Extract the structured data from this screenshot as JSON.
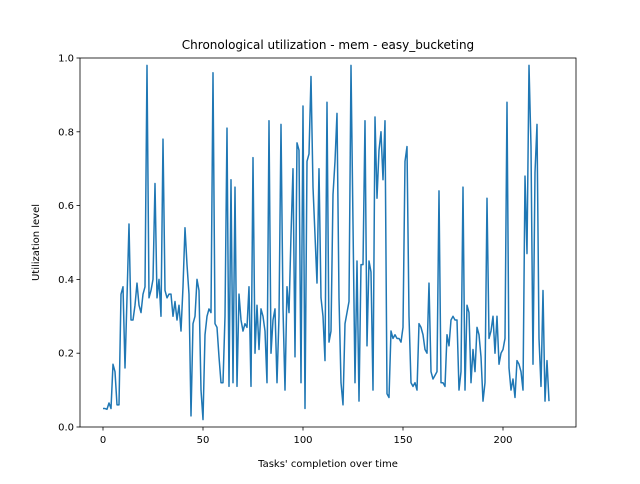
{
  "chart_data": {
    "type": "line",
    "title": "Chronological utilization - mem - easy_bucketing",
    "xlabel": "Tasks' completion over time",
    "ylabel": "Utilization level",
    "color": "#1f77b4",
    "xlim": [
      -11.5,
      236.5
    ],
    "xticks": [
      0,
      50,
      100,
      150,
      200
    ],
    "ylim": [
      0,
      1
    ],
    "yticks": [
      {
        "value": 0,
        "label": "0.0"
      },
      0.2,
      0.4,
      0.6,
      0.8,
      {
        "value": 1,
        "label": "1.0"
      }
    ],
    "values": [
      0.05,
      0.05,
      0.048,
      0.065,
      0.05,
      0.17,
      0.15,
      0.06,
      0.06,
      0.36,
      0.38,
      0.16,
      0.35,
      0.55,
      0.29,
      0.29,
      0.33,
      0.39,
      0.33,
      0.31,
      0.36,
      0.38,
      0.98,
      0.35,
      0.37,
      0.4,
      0.66,
      0.35,
      0.4,
      0.3,
      0.78,
      0.37,
      0.35,
      0.36,
      0.36,
      0.3,
      0.34,
      0.29,
      0.33,
      0.26,
      0.38,
      0.54,
      0.44,
      0.36,
      0.03,
      0.28,
      0.3,
      0.4,
      0.37,
      0.1,
      0.02,
      0.25,
      0.3,
      0.32,
      0.31,
      0.96,
      0.28,
      0.27,
      0.19,
      0.12,
      0.12,
      0.3,
      0.81,
      0.11,
      0.67,
      0.12,
      0.65,
      0.11,
      0.36,
      0.29,
      0.26,
      0.28,
      0.27,
      0.38,
      0.11,
      0.73,
      0.2,
      0.33,
      0.21,
      0.32,
      0.3,
      0.26,
      0.12,
      0.83,
      0.2,
      0.29,
      0.32,
      0.12,
      0.3,
      0.82,
      0.32,
      0.1,
      0.38,
      0.31,
      0.52,
      0.7,
      0.19,
      0.77,
      0.75,
      0.12,
      0.87,
      0.05,
      0.72,
      0.74,
      0.95,
      0.65,
      0.52,
      0.39,
      0.7,
      0.35,
      0.3,
      0.18,
      0.88,
      0.23,
      0.26,
      0.63,
      0.72,
      0.85,
      0.35,
      0.12,
      0.06,
      0.28,
      0.31,
      0.34,
      0.98,
      0.55,
      0.12,
      0.45,
      0.07,
      0.44,
      0.44,
      0.83,
      0.22,
      0.45,
      0.42,
      0.1,
      0.84,
      0.62,
      0.75,
      0.8,
      0.67,
      0.83,
      0.09,
      0.08,
      0.26,
      0.24,
      0.25,
      0.24,
      0.24,
      0.23,
      0.27,
      0.72,
      0.76,
      0.3,
      0.12,
      0.11,
      0.12,
      0.1,
      0.28,
      0.27,
      0.25,
      0.21,
      0.2,
      0.39,
      0.15,
      0.13,
      0.14,
      0.15,
      0.64,
      0.12,
      0.12,
      0.11,
      0.25,
      0.22,
      0.29,
      0.3,
      0.29,
      0.29,
      0.1,
      0.15,
      0.65,
      0.1,
      0.33,
      0.31,
      0.12,
      0.21,
      0.15,
      0.27,
      0.25,
      0.19,
      0.07,
      0.12,
      0.62,
      0.24,
      0.26,
      0.3,
      0.2,
      0.3,
      0.17,
      0.2,
      0.21,
      0.24,
      0.88,
      0.16,
      0.1,
      0.13,
      0.08,
      0.18,
      0.17,
      0.15,
      0.1,
      0.68,
      0.47,
      0.98,
      0.76,
      0.17,
      0.69,
      0.82,
      0.24,
      0.11,
      0.37,
      0.07,
      0.18,
      0.07
    ]
  }
}
